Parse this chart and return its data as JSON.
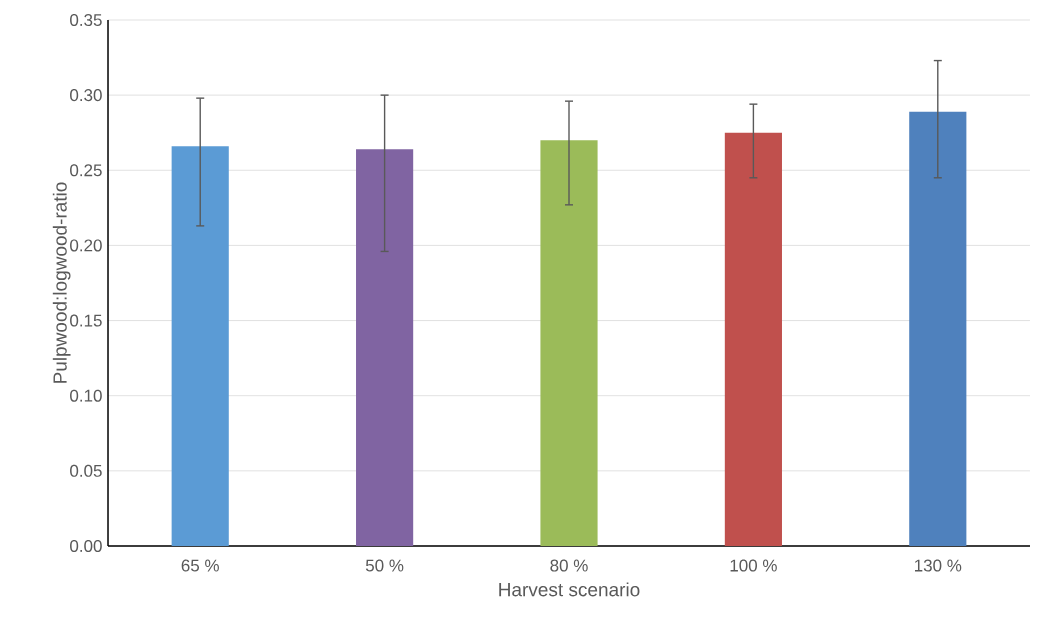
{
  "chart_data": {
    "type": "bar",
    "xlabel": "Harvest scenario",
    "ylabel": "Pulpwood:logwood-ratio",
    "categories": [
      "65 %",
      "50 %",
      "80 %",
      "100 %",
      "130 %"
    ],
    "values": [
      0.266,
      0.264,
      0.27,
      0.275,
      0.289
    ],
    "colors": [
      "#5b9bd5",
      "#8064a2",
      "#9bbb59",
      "#c0504d",
      "#4f81bd"
    ],
    "errors": [
      [
        0.213,
        0.298
      ],
      [
        0.196,
        0.3
      ],
      [
        0.227,
        0.296
      ],
      [
        0.245,
        0.294
      ],
      [
        0.245,
        0.323
      ]
    ],
    "ylim": [
      0,
      0.35
    ],
    "yticks": [
      {
        "value": 0,
        "label": "0.00"
      },
      {
        "value": 0.05,
        "label": "0.05"
      },
      {
        "value": 0.1,
        "label": "0.10"
      },
      {
        "value": 0.15,
        "label": "0.15"
      },
      {
        "value": 0.2,
        "label": "0.20"
      },
      {
        "value": 0.25,
        "label": "0.25"
      },
      {
        "value": 0.3,
        "label": "0.30"
      },
      {
        "value": 0.35,
        "label": "0.35"
      }
    ],
    "grid": "y"
  }
}
